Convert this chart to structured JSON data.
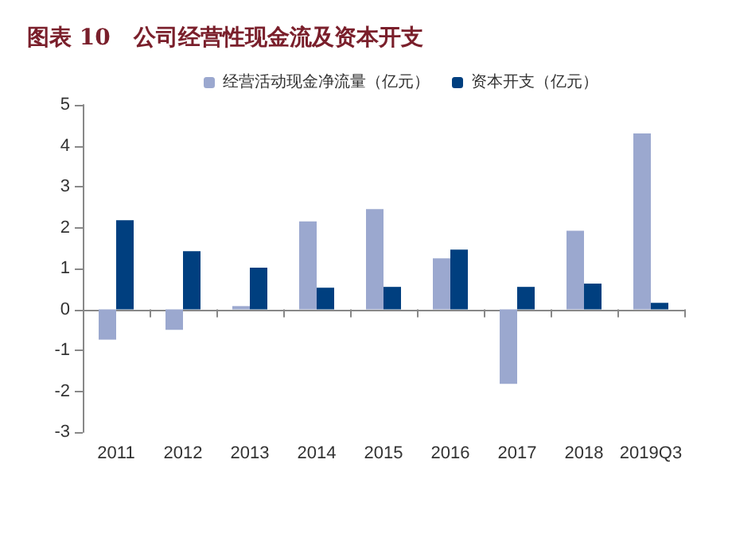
{
  "chart_data": {
    "type": "bar",
    "title": "图表 10   公司经营性现金流及资本开支",
    "categories": [
      "2011",
      "2012",
      "2013",
      "2014",
      "2015",
      "2016",
      "2017",
      "2018",
      "2019Q3"
    ],
    "series": [
      {
        "name": "经营活动现金净流量（亿元）",
        "color": "#9ba8cf",
        "values": [
          -0.74,
          -0.5,
          0.08,
          2.15,
          2.45,
          1.25,
          -1.82,
          1.92,
          4.3
        ]
      },
      {
        "name": "资本开支（亿元）",
        "color": "#003f7f",
        "values": [
          2.18,
          1.42,
          1.02,
          0.53,
          0.55,
          1.46,
          0.55,
          0.63,
          0.16
        ]
      }
    ],
    "ylim": [
      -3,
      5
    ],
    "yticks": [
      -3,
      -2,
      -1,
      0,
      1,
      2,
      3,
      4,
      5
    ],
    "legend": "top"
  }
}
